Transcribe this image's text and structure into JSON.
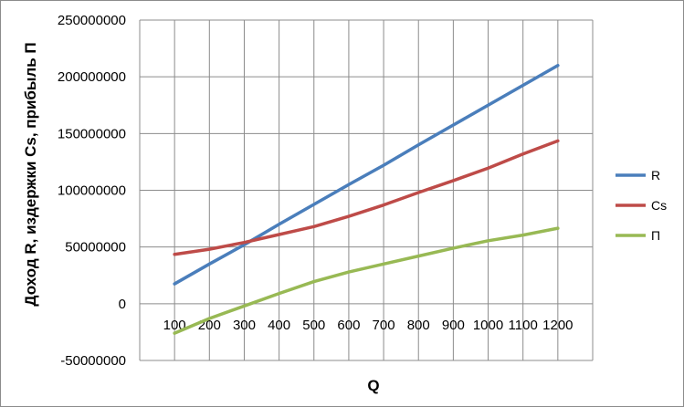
{
  "chart_data": {
    "type": "line",
    "xlabel": "Q",
    "ylabel": "Доход R, издержки Cs, прибыль П",
    "x": [
      100,
      200,
      300,
      400,
      500,
      600,
      700,
      800,
      900,
      1000,
      1100,
      1200
    ],
    "x_range": [
      0,
      1300
    ],
    "ylim": [
      -50000000,
      250000000
    ],
    "y_ticks": [
      -50000000,
      0,
      50000000,
      100000000,
      150000000,
      200000000,
      250000000
    ],
    "grid": true,
    "legend_position": "right",
    "series": [
      {
        "name": "R",
        "color": "#4a7ebb",
        "values": [
          17500000,
          35000000,
          52000000,
          70000000,
          87500000,
          105000000,
          122000000,
          140000000,
          157500000,
          175000000,
          192500000,
          210000000
        ]
      },
      {
        "name": "Cs",
        "color": "#be4b48",
        "values": [
          43500000,
          48000000,
          54000000,
          61000000,
          68000000,
          77000000,
          87000000,
          98000000,
          108500000,
          119500000,
          132000000,
          143500000
        ]
      },
      {
        "name": "П",
        "color": "#98b954",
        "values": [
          -26000000,
          -13000000,
          -2000000,
          9000000,
          19500000,
          28000000,
          35000000,
          42000000,
          49000000,
          55500000,
          60500000,
          66500000
        ]
      }
    ]
  }
}
